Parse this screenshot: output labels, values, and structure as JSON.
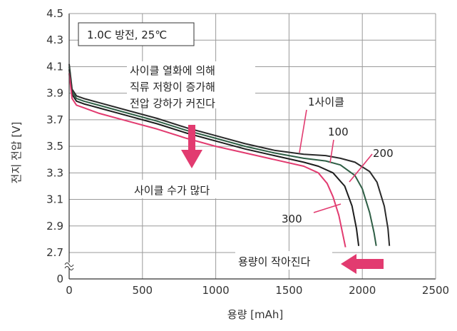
{
  "chart_data": {
    "type": "line",
    "xlabel": "용량 [mAh]",
    "ylabel": "전지 전압 [V]",
    "xlim": [
      0,
      2500
    ],
    "ylim": [
      2.7,
      4.5
    ],
    "y_axis_break": true,
    "x_ticks": [
      "0",
      "500",
      "1000",
      "1500",
      "2000",
      "2500"
    ],
    "y_ticks": [
      "0",
      "2.7",
      "2.9",
      "3.1",
      "3.3",
      "3.5",
      "3.7",
      "3.9",
      "4.1",
      "4.3",
      "4.5"
    ],
    "grid": true,
    "conditions_label": "1.0C 방전, 25℃",
    "series": [
      {
        "name": "1사이클",
        "color": "#2a2a2a",
        "x": [
          0,
          20,
          50,
          100,
          200,
          400,
          600,
          800,
          1000,
          1200,
          1400,
          1600,
          1750,
          1850,
          1950,
          2050,
          2100,
          2150,
          2175,
          2185
        ],
        "y": [
          4.12,
          3.93,
          3.88,
          3.86,
          3.83,
          3.77,
          3.71,
          3.64,
          3.58,
          3.52,
          3.47,
          3.44,
          3.43,
          3.41,
          3.38,
          3.31,
          3.23,
          3.05,
          2.88,
          2.75
        ]
      },
      {
        "name": "100",
        "color": "#2e5e45",
        "x": [
          0,
          20,
          50,
          100,
          200,
          400,
          600,
          800,
          1000,
          1200,
          1400,
          1600,
          1750,
          1850,
          1950,
          2000,
          2050,
          2080,
          2095
        ],
        "y": [
          4.1,
          3.91,
          3.86,
          3.84,
          3.81,
          3.75,
          3.69,
          3.62,
          3.56,
          3.5,
          3.45,
          3.41,
          3.39,
          3.36,
          3.28,
          3.18,
          3.0,
          2.85,
          2.75
        ]
      },
      {
        "name": "200",
        "color": "#1e1e1e",
        "x": [
          0,
          20,
          50,
          100,
          200,
          400,
          600,
          800,
          1000,
          1200,
          1400,
          1600,
          1700,
          1800,
          1880,
          1930,
          1960,
          1975
        ],
        "y": [
          4.08,
          3.89,
          3.84,
          3.82,
          3.79,
          3.73,
          3.67,
          3.6,
          3.54,
          3.48,
          3.43,
          3.38,
          3.35,
          3.3,
          3.2,
          3.05,
          2.88,
          2.75
        ]
      },
      {
        "name": "300",
        "color": "#e23b70",
        "x": [
          0,
          20,
          50,
          100,
          200,
          400,
          600,
          800,
          1000,
          1200,
          1400,
          1600,
          1700,
          1760,
          1800,
          1840,
          1870,
          1885
        ],
        "y": [
          4.05,
          3.86,
          3.81,
          3.79,
          3.75,
          3.69,
          3.63,
          3.56,
          3.5,
          3.45,
          3.4,
          3.35,
          3.3,
          3.22,
          3.12,
          2.98,
          2.82,
          2.74
        ]
      }
    ],
    "annotations": {
      "resistance_line1": "사이클 열화에 의해",
      "resistance_line2": "직류 저항이 증가해",
      "resistance_line3": "전압 강하가 커진다",
      "cycles_more": "사이클 수가 많다",
      "capacity_less": "용량이 작아진다"
    },
    "accent_color": "#e23b70"
  }
}
